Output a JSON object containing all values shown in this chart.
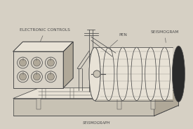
{
  "bg_color": "#d6d0c4",
  "line_color": "#4a4a4a",
  "fill_light": "#e8e2d6",
  "fill_dark": "#b0a898",
  "fill_box": "#c8c2b4",
  "fill_drum": "#d8d2c6",
  "fill_cap": "#2a2a2a",
  "label_electronic": "ELECTRONIC CONTROLS",
  "label_pen": "PEN",
  "label_seismogram": "SEISMOGRAM",
  "label_bottom": "SEISMOGRAPH",
  "label_fontsize": 4.2
}
